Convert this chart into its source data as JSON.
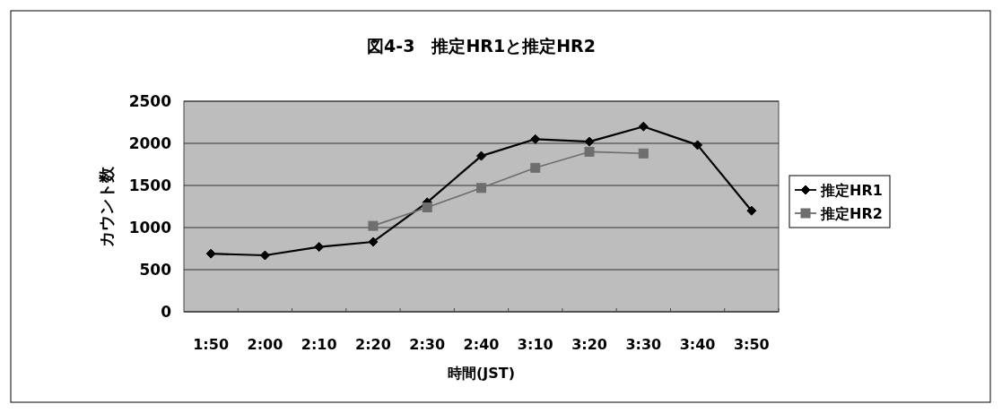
{
  "chart_data": {
    "type": "line",
    "title": "図4-3　推定HR1と推定HR2",
    "xlabel": "時間(JST)",
    "ylabel": "カウント数",
    "categories": [
      "1:50",
      "2:00",
      "2:10",
      "2:20",
      "2:30",
      "2:40",
      "3:10",
      "3:20",
      "3:30",
      "3:40",
      "3:50"
    ],
    "series": [
      {
        "name": "推定HR1",
        "color": "#000000",
        "marker": "diamond",
        "values": [
          690,
          670,
          770,
          830,
          1300,
          1850,
          2050,
          2020,
          2200,
          1980,
          1200
        ]
      },
      {
        "name": "推定HR2",
        "color": "#6e6e6e",
        "marker": "square",
        "values": [
          null,
          null,
          null,
          1020,
          1240,
          1470,
          1710,
          1900,
          1880,
          null,
          null
        ]
      }
    ],
    "ylim": [
      0,
      2500
    ],
    "yticks": [
      0,
      500,
      1000,
      1500,
      2000,
      2500
    ],
    "grid": "y",
    "legend": "right",
    "line_style": "solid"
  }
}
